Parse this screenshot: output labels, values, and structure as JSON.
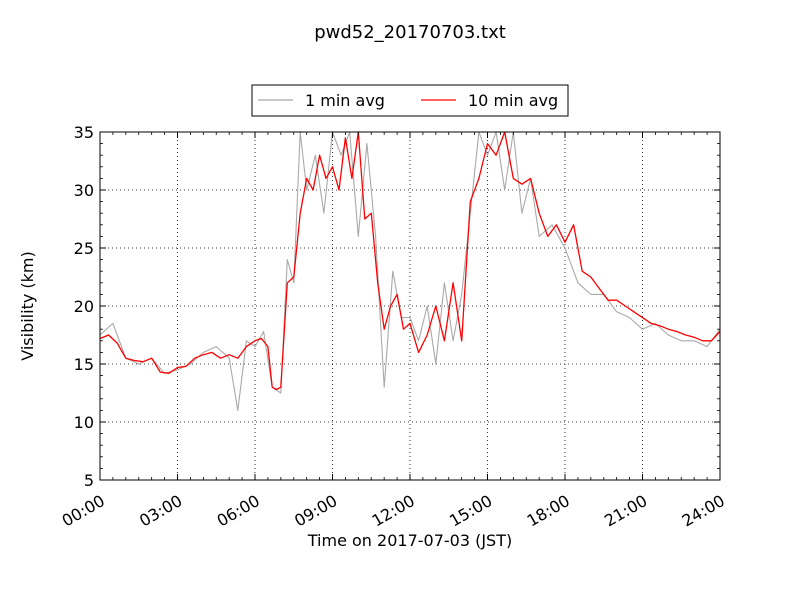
{
  "chart_data": {
    "type": "line",
    "title": "pwd52_20170703.txt",
    "xlabel": "Time on 2017-07-03 (JST)",
    "ylabel": "Visibility (km)",
    "xlim": [
      "00:00",
      "24:00"
    ],
    "ylim": [
      5,
      35
    ],
    "x_tick_labels": [
      "00:00",
      "03:00",
      "06:00",
      "09:00",
      "12:00",
      "15:00",
      "18:00",
      "21:00",
      "24:00"
    ],
    "y_tick_labels": [
      "5",
      "10",
      "15",
      "20",
      "25",
      "30",
      "35"
    ],
    "grid": true,
    "legend": {
      "placement": "top-center"
    },
    "series": [
      {
        "name": "1 min avg",
        "color": "#a9a9a9",
        "x": [
          "00:00",
          "00:30",
          "01:00",
          "01:30",
          "02:00",
          "02:30",
          "03:00",
          "03:30",
          "04:00",
          "04:30",
          "05:00",
          "05:20",
          "05:40",
          "06:00",
          "06:20",
          "06:40",
          "07:00",
          "07:15",
          "07:30",
          "07:45",
          "08:00",
          "08:20",
          "08:40",
          "09:00",
          "09:20",
          "09:40",
          "10:00",
          "10:20",
          "10:40",
          "11:00",
          "11:20",
          "11:40",
          "12:00",
          "12:20",
          "12:40",
          "13:00",
          "13:20",
          "13:40",
          "14:00",
          "14:20",
          "14:40",
          "15:00",
          "15:20",
          "15:40",
          "16:00",
          "16:20",
          "16:40",
          "17:00",
          "17:30",
          "18:00",
          "18:30",
          "19:00",
          "19:30",
          "20:00",
          "20:30",
          "21:00",
          "21:30",
          "22:00",
          "22:30",
          "23:00",
          "23:30",
          "24:00"
        ],
        "y": [
          17.5,
          18.5,
          15.5,
          15.0,
          15.5,
          14.2,
          14.5,
          15.0,
          16.0,
          16.5,
          15.5,
          11.0,
          17.0,
          16.5,
          17.8,
          13.0,
          12.5,
          24.0,
          22.0,
          35.0,
          30.0,
          33.0,
          28.0,
          35.0,
          33.0,
          35.0,
          26.0,
          34.0,
          26.0,
          13.0,
          23.0,
          19.0,
          19.0,
          17.0,
          20.0,
          15.0,
          22.0,
          17.0,
          21.0,
          28.0,
          35.0,
          33.0,
          35.0,
          30.0,
          35.0,
          28.0,
          31.0,
          26.0,
          27.0,
          25.0,
          22.0,
          21.0,
          21.0,
          19.5,
          19.0,
          18.0,
          18.5,
          17.5,
          17.0,
          17.0,
          16.5,
          18.0
        ]
      },
      {
        "name": "10 min avg",
        "color": "#ff0000",
        "x": [
          "00:00",
          "00:20",
          "00:40",
          "01:00",
          "01:20",
          "01:40",
          "02:00",
          "02:20",
          "02:40",
          "03:00",
          "03:20",
          "03:40",
          "04:00",
          "04:20",
          "04:40",
          "05:00",
          "05:20",
          "05:40",
          "06:00",
          "06:15",
          "06:30",
          "06:40",
          "06:50",
          "07:00",
          "07:15",
          "07:30",
          "07:45",
          "08:00",
          "08:15",
          "08:30",
          "08:45",
          "09:00",
          "09:15",
          "09:30",
          "09:45",
          "10:00",
          "10:15",
          "10:30",
          "10:45",
          "11:00",
          "11:15",
          "11:30",
          "11:45",
          "12:00",
          "12:20",
          "12:40",
          "13:00",
          "13:20",
          "13:40",
          "14:00",
          "14:20",
          "14:40",
          "15:00",
          "15:20",
          "15:40",
          "16:00",
          "16:20",
          "16:40",
          "17:00",
          "17:20",
          "17:40",
          "18:00",
          "18:20",
          "18:40",
          "19:00",
          "19:20",
          "19:40",
          "20:00",
          "20:20",
          "20:40",
          "21:00",
          "21:20",
          "21:40",
          "22:00",
          "22:20",
          "22:40",
          "23:00",
          "23:20",
          "23:40",
          "24:00"
        ],
        "y": [
          17.2,
          17.5,
          16.8,
          15.5,
          15.3,
          15.2,
          15.5,
          14.3,
          14.2,
          14.7,
          14.8,
          15.5,
          15.8,
          16.0,
          15.5,
          15.8,
          15.5,
          16.5,
          17.0,
          17.2,
          16.5,
          13.0,
          12.8,
          13.0,
          22.0,
          22.5,
          28.0,
          31.0,
          30.0,
          33.0,
          31.0,
          32.0,
          30.0,
          34.5,
          31.0,
          35.0,
          27.5,
          28.0,
          22.0,
          18.0,
          20.0,
          21.0,
          18.0,
          18.5,
          16.0,
          17.5,
          20.0,
          17.0,
          22.0,
          17.0,
          29.0,
          31.0,
          34.0,
          33.0,
          35.0,
          31.0,
          30.5,
          31.0,
          28.0,
          26.0,
          27.0,
          25.5,
          27.0,
          23.0,
          22.5,
          21.5,
          20.5,
          20.5,
          20.0,
          19.5,
          19.0,
          18.5,
          18.3,
          18.0,
          17.8,
          17.5,
          17.3,
          17.0,
          17.0,
          17.8
        ]
      }
    ]
  }
}
